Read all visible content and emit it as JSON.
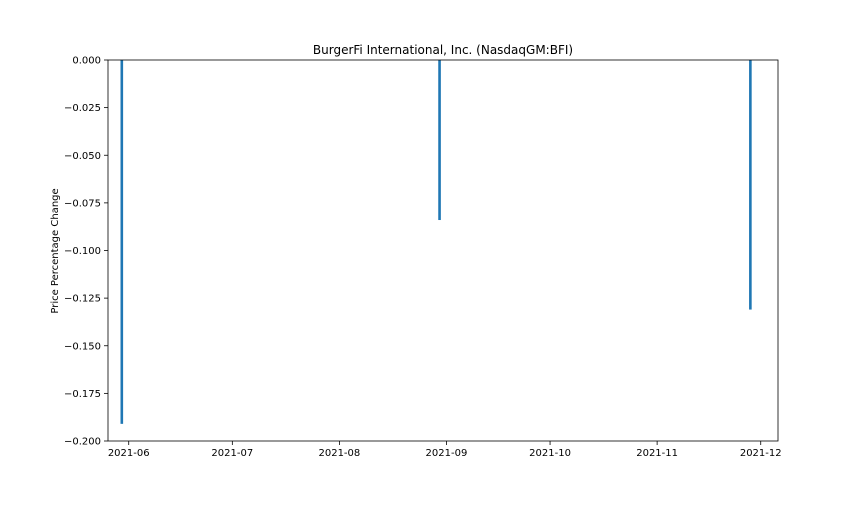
{
  "chart_data": {
    "type": "bar",
    "title": "BurgerFi International, Inc. (NasdaqGM:BFI)",
    "xlabel": "",
    "ylabel": "Price Percentage Change",
    "x_axis_type": "date",
    "xlim": [
      "2021-05-26",
      "2021-12-06"
    ],
    "ylim": [
      -0.2,
      0.0
    ],
    "x_ticks": [
      "2021-06",
      "2021-07",
      "2021-08",
      "2021-09",
      "2021-10",
      "2021-11",
      "2021-12"
    ],
    "y_ticks": [
      "0.000",
      "−0.025",
      "−0.050",
      "−0.075",
      "−0.100",
      "−0.125",
      "−0.150",
      "−0.175",
      "−0.200"
    ],
    "y_tick_values": [
      0,
      -0.025,
      -0.05,
      -0.075,
      -0.1,
      -0.125,
      -0.15,
      -0.175,
      -0.2
    ],
    "grid": false,
    "legend": "none",
    "series": [
      {
        "color": "#1f77b4",
        "points": [
          {
            "x": "2021-05-30",
            "y": -0.191
          },
          {
            "x": "2021-08-30",
            "y": -0.084
          },
          {
            "x": "2021-11-28",
            "y": -0.131
          }
        ]
      }
    ]
  }
}
